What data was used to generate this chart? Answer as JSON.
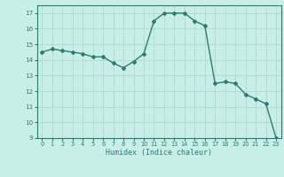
{
  "x": [
    0,
    1,
    2,
    3,
    4,
    5,
    6,
    7,
    8,
    9,
    10,
    11,
    12,
    13,
    14,
    15,
    16,
    17,
    18,
    19,
    20,
    21,
    22,
    23
  ],
  "y": [
    14.5,
    14.7,
    14.6,
    14.5,
    14.4,
    14.2,
    14.2,
    13.8,
    13.5,
    13.9,
    14.4,
    16.5,
    17.0,
    17.0,
    17.0,
    16.5,
    16.2,
    12.5,
    12.6,
    12.5,
    11.8,
    11.5,
    11.2,
    9.0
  ],
  "xlabel": "Humidex (Indice chaleur)",
  "ylim": [
    9,
    17.5
  ],
  "xlim": [
    -0.5,
    23.5
  ],
  "yticks": [
    9,
    10,
    11,
    12,
    13,
    14,
    15,
    16,
    17
  ],
  "xticks": [
    0,
    1,
    2,
    3,
    4,
    5,
    6,
    7,
    8,
    9,
    10,
    11,
    12,
    13,
    14,
    15,
    16,
    17,
    18,
    19,
    20,
    21,
    22,
    23
  ],
  "line_color": "#2d7d6e",
  "bg_color": "#c8eee8",
  "grid_color": "#aed4cc",
  "marker": "D",
  "marker_size": 2.0,
  "linewidth": 1.0
}
